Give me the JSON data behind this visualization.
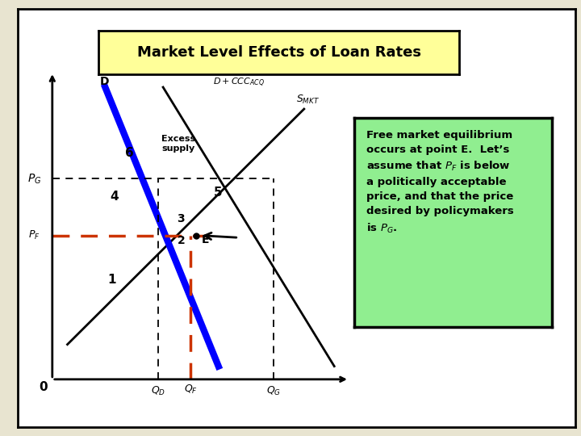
{
  "title": "Market Level Effects of Loan Rates",
  "slide_bg": "#f0ede0",
  "panel_bg": "#ffffff",
  "title_bg": "#ffff99",
  "box_bg": "#90ee90",
  "gold_stripe": "#c8a832",
  "P_G": 4.6,
  "P_F": 3.3,
  "Q_D": 2.1,
  "Q_F": 2.75,
  "Q_G": 4.4,
  "E_x": 2.85,
  "E_y": 3.3,
  "supply_x1": 0.3,
  "supply_y1": 0.8,
  "supply_x2": 5.0,
  "supply_y2": 6.2,
  "demand_x1": 1.05,
  "demand_y1": 6.7,
  "demand_x2": 3.3,
  "demand_y2": 0.3,
  "ccc_x1": 2.2,
  "ccc_y1": 6.7,
  "ccc_x2": 5.6,
  "ccc_y2": 0.3,
  "xlim": [
    0,
    6.0
  ],
  "ylim": [
    0,
    7.2
  ]
}
